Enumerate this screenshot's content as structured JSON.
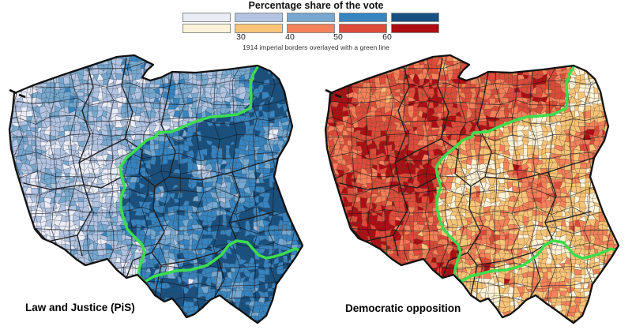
{
  "figure": {
    "legend": {
      "title": "Percentage share of the vote",
      "tick_labels": [
        "30",
        "40",
        "50",
        "60"
      ],
      "caption": "1914 imperial borders overlayed with a green line"
    },
    "colors": {
      "pis_palette": [
        "#eaecf6",
        "#b2c4e1",
        "#76a8cf",
        "#3684c0",
        "#175181"
      ],
      "opposition_palette": [
        "#fcf3d8",
        "#f8c477",
        "#f4815a",
        "#dd4b3a",
        "#ad0d13"
      ],
      "green_line": "#3cdd4d",
      "country_outline": "#101010",
      "background": "#ffffff"
    },
    "maps": [
      {
        "id": "pis",
        "label": "Law and Justice (PiS)",
        "palette": "pis_palette"
      },
      {
        "id": "opposition",
        "label": "Democratic opposition",
        "palette": "opposition_palette"
      }
    ],
    "chart_data": {
      "type": "choropleth",
      "region": "Poland, municipalities",
      "measure": "Percentage share of the vote",
      "bins": [
        "<30",
        "30-40",
        "40-50",
        "50-60",
        ">60"
      ],
      "bin_thresholds": [
        30,
        40,
        50,
        60
      ],
      "overlay": "1914 imperial borders (green line)",
      "series": [
        {
          "name": "Law and Justice (PiS)",
          "high_share_region": "east and south (former Russian and Austrian partitions)",
          "low_share_region": "west and north (former Prussian partition) and large cities"
        },
        {
          "name": "Democratic opposition",
          "high_share_region": "west and north (former Prussian partition) and large cities",
          "low_share_region": "east and south (former Russian and Austrian partitions)"
        }
      ]
    }
  }
}
